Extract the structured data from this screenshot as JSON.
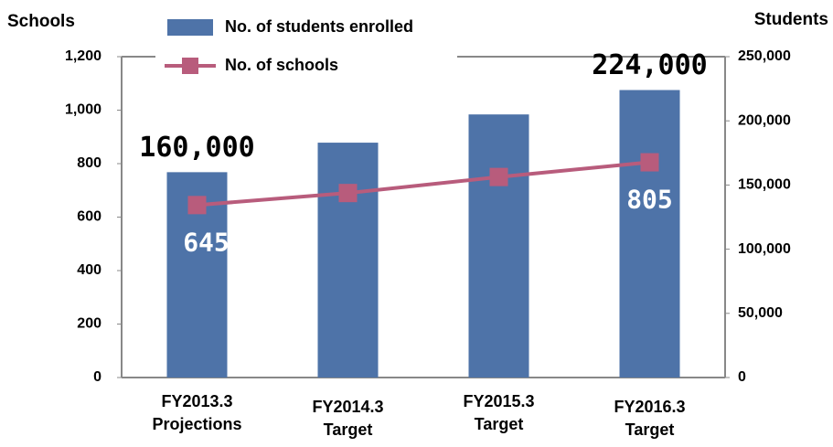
{
  "chart_data": {
    "type": "bar",
    "y_label": "Schools",
    "y2_label": "Students",
    "categories": [
      [
        "FY2013.3",
        "Projections"
      ],
      [
        "FY2014.3",
        "Target"
      ],
      [
        "FY2015.3",
        "Target"
      ],
      [
        "FY2016.3",
        "Target"
      ]
    ],
    "series": [
      {
        "name": "No. of students enrolled",
        "type": "bar",
        "axis": "y2",
        "color": "#4e73a8",
        "values": [
          160000,
          183000,
          205000,
          224000
        ],
        "value_labels": [
          "160,000",
          null,
          null,
          "224,000"
        ]
      },
      {
        "name": "No. of schools",
        "type": "line",
        "axis": "y",
        "color": "#b85c7c",
        "values": [
          645,
          690,
          750,
          805
        ],
        "value_labels": [
          "645",
          null,
          null,
          "805"
        ]
      }
    ],
    "ylim": [
      0,
      1200
    ],
    "yticks": [
      0,
      200,
      400,
      600,
      800,
      {
        "value": 1000,
        "label": "1,000"
      },
      {
        "value": 1200,
        "label": "1,200"
      }
    ],
    "y2lim": [
      0,
      250000
    ],
    "y2ticks": [
      0,
      {
        "value": 50000,
        "label": "50,000"
      },
      {
        "value": 100000,
        "label": "100,000"
      },
      {
        "value": 150000,
        "label": "150,000"
      },
      {
        "value": 200000,
        "label": "200,000"
      },
      {
        "value": 250000,
        "label": "250,000"
      }
    ]
  }
}
